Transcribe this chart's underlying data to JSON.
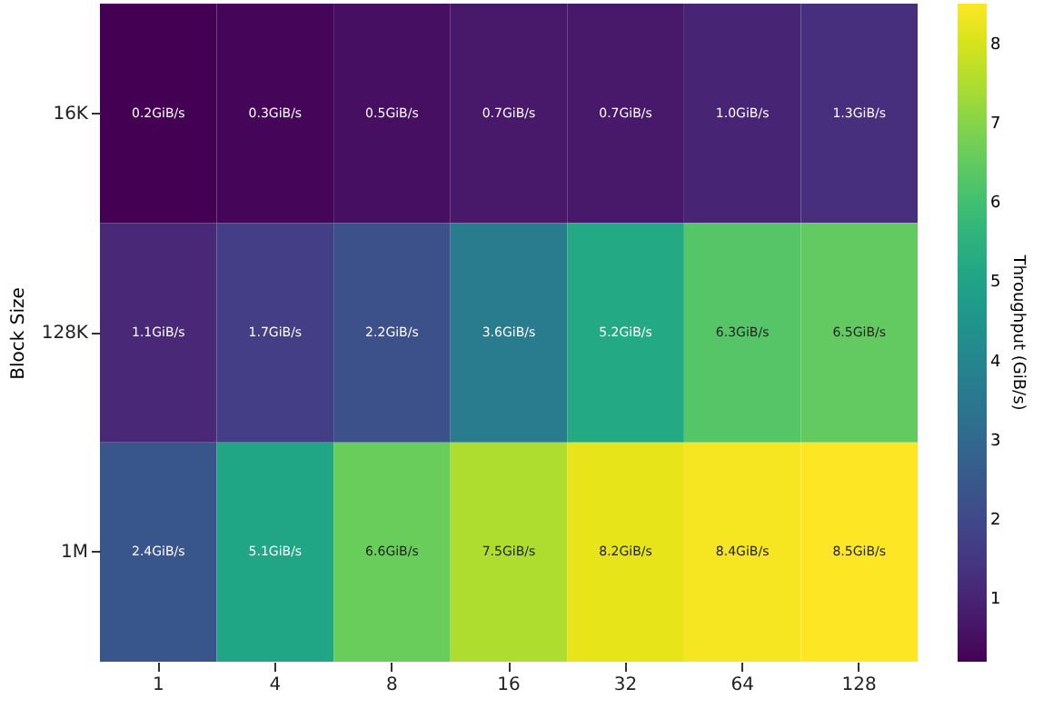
{
  "chart_data": {
    "type": "heatmap",
    "ylabel": "Block Size",
    "clabel": "Throughput (GiB/s)",
    "categories": [
      "1",
      "4",
      "8",
      "16",
      "32",
      "64",
      "128"
    ],
    "y_categories": [
      "16K",
      "128K",
      "1M"
    ],
    "cells": [
      [
        0.2,
        0.3,
        0.5,
        0.7,
        0.7,
        1.0,
        1.3
      ],
      [
        1.1,
        1.7,
        2.2,
        3.6,
        5.2,
        6.3,
        6.5
      ],
      [
        2.4,
        5.1,
        6.6,
        7.5,
        8.2,
        8.4,
        8.5
      ]
    ],
    "cell_labels": [
      [
        "0.2GiB/s",
        "0.3GiB/s",
        "0.5GiB/s",
        "0.7GiB/s",
        "0.7GiB/s",
        "1.0GiB/s",
        "1.3GiB/s"
      ],
      [
        "1.1GiB/s",
        "1.7GiB/s",
        "2.2GiB/s",
        "3.6GiB/s",
        "5.2GiB/s",
        "6.3GiB/s",
        "6.5GiB/s"
      ],
      [
        "2.4GiB/s",
        "5.1GiB/s",
        "6.6GiB/s",
        "7.5GiB/s",
        "8.2GiB/s",
        "8.4GiB/s",
        "8.5GiB/s"
      ]
    ],
    "clim": [
      0.2,
      8.5
    ],
    "cticks": [
      1,
      2,
      3,
      4,
      5,
      6,
      7,
      8
    ]
  }
}
